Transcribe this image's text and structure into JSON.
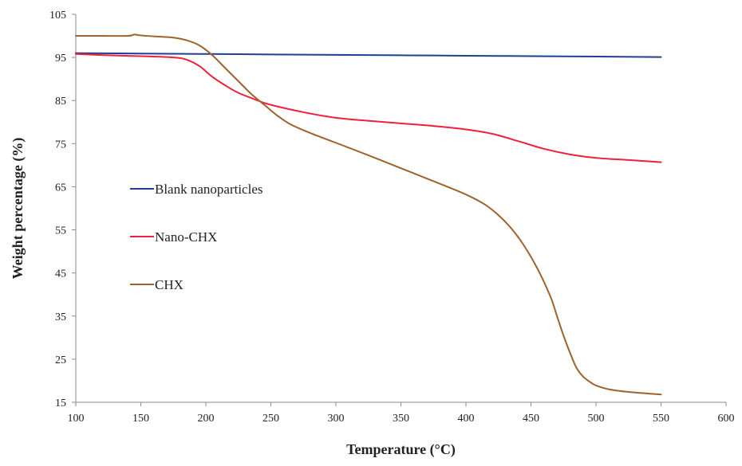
{
  "chart_data": {
    "type": "line",
    "title": "",
    "xlabel": "Temperature (°C)",
    "ylabel": "Weight percentage (%)",
    "xlim": [
      100,
      600
    ],
    "ylim": [
      15,
      105
    ],
    "x_ticks": [
      "100",
      "150",
      "200",
      "250",
      "300",
      "350",
      "400",
      "450",
      "500",
      "550",
      "600"
    ],
    "y_ticks": [
      "105",
      "95",
      "85",
      "75",
      "65",
      "55",
      "45",
      "35",
      "25",
      "15"
    ],
    "grid": false,
    "legend_placement": "left",
    "series": [
      {
        "name": "Blank nanoparticles",
        "color": "#1f3f8f",
        "x": [
          100,
          150,
          200,
          250,
          300,
          350,
          400,
          450,
          500,
          550
        ],
        "y": [
          96.0,
          95.9,
          95.8,
          95.7,
          95.6,
          95.5,
          95.4,
          95.3,
          95.2,
          95.1
        ]
      },
      {
        "name": "Nano-CHX",
        "color": "#f0203a",
        "x": [
          100,
          125,
          150,
          175,
          185,
          195,
          205,
          215,
          225,
          240,
          250,
          275,
          300,
          325,
          350,
          375,
          400,
          420,
          440,
          460,
          480,
          500,
          525,
          550
        ],
        "y": [
          95.8,
          95.5,
          95.3,
          95.0,
          94.5,
          93.0,
          90.5,
          88.5,
          86.8,
          85.0,
          84.0,
          82.3,
          81.0,
          80.3,
          79.7,
          79.1,
          78.3,
          77.3,
          75.6,
          73.8,
          72.5,
          71.7,
          71.2,
          70.7
        ]
      },
      {
        "name": "CHX",
        "color": "#a0622d",
        "x": [
          100,
          120,
          140,
          145,
          150,
          160,
          175,
          185,
          195,
          205,
          215,
          225,
          235,
          245,
          255,
          265,
          280,
          300,
          325,
          350,
          375,
          400,
          415,
          425,
          435,
          445,
          455,
          465,
          470,
          475,
          480,
          485,
          490,
          495,
          500,
          510,
          525,
          550
        ],
        "y": [
          100,
          100,
          100,
          100.3,
          100.1,
          99.9,
          99.6,
          99.0,
          97.8,
          95.5,
          92.5,
          89.5,
          86.5,
          84.0,
          81.5,
          79.5,
          77.5,
          75.2,
          72.3,
          69.3,
          66.3,
          63.2,
          60.8,
          58.4,
          55.3,
          51.2,
          46.0,
          39.5,
          35.0,
          30.5,
          26.5,
          23.0,
          21.0,
          19.8,
          18.9,
          18.0,
          17.4,
          16.8
        ]
      }
    ]
  }
}
